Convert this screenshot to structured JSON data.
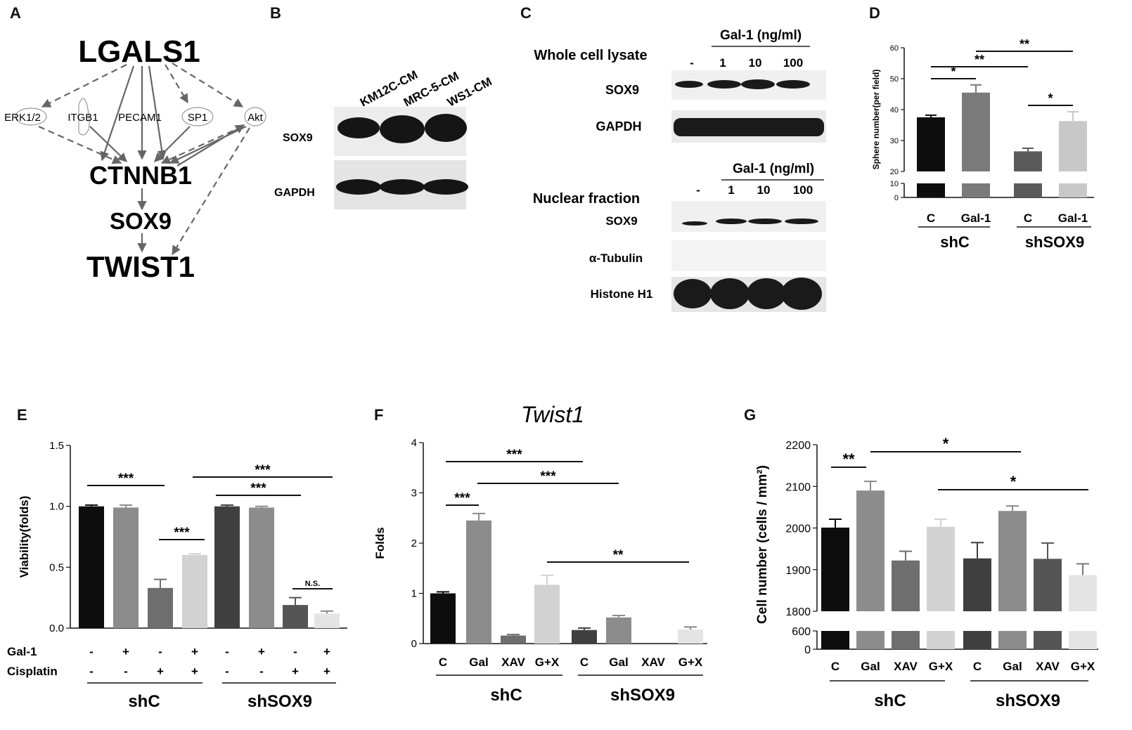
{
  "panels": {
    "A": "A",
    "B": "B",
    "C": "C",
    "D": "D",
    "E": "E",
    "F": "F",
    "G": "G"
  },
  "network": {
    "nodes": {
      "lgals1": "LGALS1",
      "erk": "ERK1/2",
      "itgb1": "ITGB1",
      "pecam1": "PECAM1",
      "sp1": "SP1",
      "akt": "Akt",
      "ctnnb1": "CTNNB1",
      "sox9": "SOX9",
      "twist1": "TWIST1"
    }
  },
  "blotB": {
    "lanes": [
      "KM12C-CM",
      "MRC-5-CM",
      "WS1-CM"
    ],
    "rows": [
      "SOX9",
      "GAPDH"
    ]
  },
  "blotC": {
    "top": {
      "title": "Whole cell lysate",
      "treatment": "Gal-1 (ng/ml)",
      "doses": [
        "-",
        "1",
        "10",
        "100"
      ],
      "rows": [
        "SOX9",
        "GAPDH"
      ]
    },
    "bottom": {
      "title": "Nuclear fraction",
      "treatment": "Gal-1 (ng/ml)",
      "doses": [
        "-",
        "1",
        "10",
        "100"
      ],
      "rows": [
        "SOX9",
        "α-Tubulin",
        "Histone H1"
      ]
    }
  },
  "chart_data": [
    {
      "id": "D",
      "type": "bar",
      "title": "",
      "ylabel": "Sphere number(per field)",
      "categories": [
        "C",
        "Gal-1",
        "C",
        "Gal-1"
      ],
      "groups": [
        "shC",
        "shSOX9"
      ],
      "values": [
        37.5,
        45.5,
        26.5,
        36.3
      ],
      "errors": [
        0.7,
        2.5,
        1.0,
        3.0
      ],
      "colors": [
        "#0d0d0d",
        "#7a7a7a",
        "#5a5a5a",
        "#c8c8c8"
      ],
      "yticks": [
        0,
        10,
        20,
        30,
        40,
        50,
        60
      ],
      "ylim": [
        0,
        60
      ],
      "axis_break": [
        10,
        20
      ],
      "significance": [
        {
          "from": 0,
          "to": 1,
          "label": "*"
        },
        {
          "from": 0,
          "to": 2,
          "label": "**"
        },
        {
          "from": 1,
          "to": 3,
          "label": "**"
        },
        {
          "from": 2,
          "to": 3,
          "label": "*"
        }
      ]
    },
    {
      "id": "E",
      "type": "bar",
      "title": "",
      "ylabel": "Viability(folds)",
      "categories": [
        "1",
        "2",
        "3",
        "4",
        "5",
        "6",
        "7",
        "8"
      ],
      "row_labels": [
        "Gal-1",
        "Cisplatin"
      ],
      "gal1": [
        "-",
        "+",
        "-",
        "+",
        "-",
        "+",
        "-",
        "+"
      ],
      "cisplatin": [
        "-",
        "-",
        "+",
        "+",
        "-",
        "-",
        "+",
        "+"
      ],
      "groups": [
        "shC",
        "shSOX9"
      ],
      "values": [
        1.0,
        0.99,
        0.33,
        0.6,
        1.0,
        0.99,
        0.19,
        0.12
      ],
      "errors": [
        0.01,
        0.02,
        0.07,
        0.01,
        0.01,
        0.01,
        0.06,
        0.02
      ],
      "colors": [
        "#0d0d0d",
        "#8c8c8c",
        "#6e6e6e",
        "#d2d2d2",
        "#3f3f3f",
        "#8c8c8c",
        "#555555",
        "#e4e4e4"
      ],
      "yticks": [
        "0.0",
        "0.5",
        "1.0",
        "1.5"
      ],
      "ylim": [
        0,
        1.5
      ],
      "significance": [
        {
          "from": 0,
          "to": 2,
          "label": "***"
        },
        {
          "from": 2,
          "to": 3,
          "label": "***"
        },
        {
          "from": 4,
          "to": 6,
          "label": "***"
        },
        {
          "from": 3,
          "to": 7,
          "label": "***"
        },
        {
          "from": 6,
          "to": 7,
          "label": "N.S."
        }
      ]
    },
    {
      "id": "F",
      "type": "bar",
      "title": "Twist1",
      "ylabel": "Folds",
      "categories": [
        "C",
        "Gal",
        "XAV",
        "G+X",
        "C",
        "Gal",
        "XAV",
        "G+X"
      ],
      "groups": [
        "shC",
        "shSOX9"
      ],
      "values": [
        1.0,
        2.45,
        0.16,
        1.17,
        0.27,
        0.52,
        0.0,
        0.28
      ],
      "errors": [
        0.03,
        0.14,
        0.02,
        0.19,
        0.04,
        0.04,
        0.0,
        0.05
      ],
      "colors": [
        "#0d0d0d",
        "#8c8c8c",
        "#6e6e6e",
        "#d2d2d2",
        "#3f3f3f",
        "#8c8c8c",
        "#555555",
        "#e4e4e4"
      ],
      "yticks": [
        "0",
        "1",
        "2",
        "3",
        "4"
      ],
      "ylim": [
        0,
        4
      ],
      "significance": [
        {
          "from": 0,
          "to": 1,
          "label": "***"
        },
        {
          "from": 0,
          "to": 4,
          "label": "***"
        },
        {
          "from": 1,
          "to": 5,
          "label": "***"
        },
        {
          "from": 3,
          "to": 7,
          "label": "**"
        }
      ]
    },
    {
      "id": "G",
      "type": "bar",
      "title": "",
      "ylabel": "Cell number (cells / mm²)",
      "categories": [
        "C",
        "Gal",
        "XAV",
        "G+X",
        "C",
        "Gal",
        "XAV",
        "G+X"
      ],
      "groups": [
        "shC",
        "shSOX9"
      ],
      "values": [
        2001,
        2090,
        1922,
        2003,
        1927,
        2041,
        1926,
        1887
      ],
      "errors": [
        20,
        22,
        22,
        18,
        38,
        12,
        38,
        27
      ],
      "colors": [
        "#0d0d0d",
        "#8c8c8c",
        "#6e6e6e",
        "#d2d2d2",
        "#3f3f3f",
        "#8c8c8c",
        "#555555",
        "#e4e4e4"
      ],
      "yticks_upper": [
        1800,
        1900,
        2000,
        2100,
        2200
      ],
      "yticks_lower": [
        0,
        600
      ],
      "ylim": [
        1800,
        2200
      ],
      "significance": [
        {
          "from": 0,
          "to": 1,
          "label": "**"
        },
        {
          "from": 1,
          "to": 5,
          "label": "*"
        },
        {
          "from": 3,
          "to": 7,
          "label": "*"
        }
      ]
    }
  ]
}
